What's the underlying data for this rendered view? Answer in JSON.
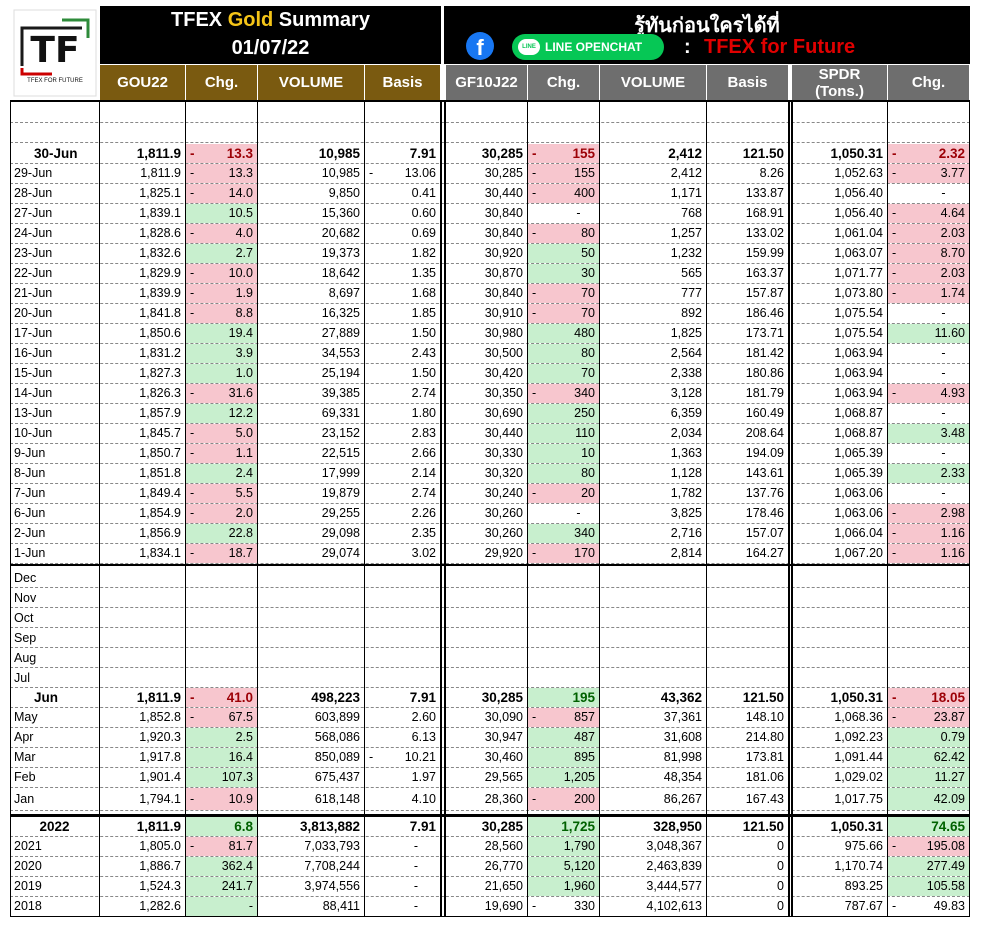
{
  "logo": {
    "letters": "TF",
    "caption": "TFEX FOR FUTURE"
  },
  "header": {
    "title_pre": "TFEX ",
    "title_gold": "Gold",
    "title_post": " Summary",
    "date": "01/07/22",
    "thai_tagline": "รู้ทันก่อนใครได้ที่",
    "line_label": "LINE OPENCHAT",
    "colon": ":",
    "brand": "TFEX for Future"
  },
  "columns": {
    "gold": [
      "GOU22",
      "Chg.",
      "VOLUME",
      "Basis"
    ],
    "gf": [
      "GF10J22",
      "Chg.",
      "VOLUME",
      "Basis"
    ],
    "spdr_l1": "SPDR",
    "spdr_l2": "(Tons.)",
    "spdr_chg": "Chg."
  },
  "daily_rows": [
    {
      "label": "30-Jun",
      "bold": true,
      "gou": "1,811.9",
      "gou_chg": "13.3",
      "gou_sign": "neg",
      "gou_vol": "10,985",
      "gou_basis": "7.91",
      "gou_basis_neg": false,
      "gf": "30,285",
      "gf_chg": "155",
      "gf_sign": "neg",
      "gf_vol": "2,412",
      "gf_basis": "121.50",
      "spdr": "1,050.31",
      "spdr_chg": "2.32",
      "spdr_sign": "neg"
    },
    {
      "label": "29-Jun",
      "gou": "1,811.9",
      "gou_chg": "13.3",
      "gou_sign": "neg",
      "gou_vol": "10,985",
      "gou_basis": "13.06",
      "gou_basis_neg": true,
      "gf": "30,285",
      "gf_chg": "155",
      "gf_sign": "neg",
      "gf_vol": "2,412",
      "gf_basis": "8.26",
      "spdr": "1,052.63",
      "spdr_chg": "3.77",
      "spdr_sign": "neg"
    },
    {
      "label": "28-Jun",
      "gou": "1,825.1",
      "gou_chg": "14.0",
      "gou_sign": "neg",
      "gou_vol": "9,850",
      "gou_basis": "0.41",
      "gf": "30,440",
      "gf_chg": "400",
      "gf_sign": "neg",
      "gf_vol": "1,171",
      "gf_basis": "133.87",
      "spdr": "1,056.40",
      "spdr_chg": "-",
      "spdr_sign": "none"
    },
    {
      "label": "27-Jun",
      "gou": "1,839.1",
      "gou_chg": "10.5",
      "gou_sign": "pos",
      "gou_vol": "15,360",
      "gou_basis": "0.60",
      "gf": "30,840",
      "gf_chg": "-",
      "gf_sign": "none",
      "gf_vol": "768",
      "gf_basis": "168.91",
      "spdr": "1,056.40",
      "spdr_chg": "4.64",
      "spdr_sign": "neg"
    },
    {
      "label": "24-Jun",
      "gou": "1,828.6",
      "gou_chg": "4.0",
      "gou_sign": "neg",
      "gou_vol": "20,682",
      "gou_basis": "0.69",
      "gf": "30,840",
      "gf_chg": "80",
      "gf_sign": "neg",
      "gf_vol": "1,257",
      "gf_basis": "133.02",
      "spdr": "1,061.04",
      "spdr_chg": "2.03",
      "spdr_sign": "neg"
    },
    {
      "label": "23-Jun",
      "gou": "1,832.6",
      "gou_chg": "2.7",
      "gou_sign": "pos",
      "gou_vol": "19,373",
      "gou_basis": "1.82",
      "gf": "30,920",
      "gf_chg": "50",
      "gf_sign": "pos",
      "gf_vol": "1,232",
      "gf_basis": "159.99",
      "spdr": "1,063.07",
      "spdr_chg": "8.70",
      "spdr_sign": "neg"
    },
    {
      "label": "22-Jun",
      "gou": "1,829.9",
      "gou_chg": "10.0",
      "gou_sign": "neg",
      "gou_vol": "18,642",
      "gou_basis": "1.35",
      "gf": "30,870",
      "gf_chg": "30",
      "gf_sign": "pos",
      "gf_vol": "565",
      "gf_basis": "163.37",
      "spdr": "1,071.77",
      "spdr_chg": "2.03",
      "spdr_sign": "neg"
    },
    {
      "label": "21-Jun",
      "gou": "1,839.9",
      "gou_chg": "1.9",
      "gou_sign": "neg",
      "gou_vol": "8,697",
      "gou_basis": "1.68",
      "gf": "30,840",
      "gf_chg": "70",
      "gf_sign": "neg",
      "gf_vol": "777",
      "gf_basis": "157.87",
      "spdr": "1,073.80",
      "spdr_chg": "1.74",
      "spdr_sign": "neg"
    },
    {
      "label": "20-Jun",
      "gou": "1,841.8",
      "gou_chg": "8.8",
      "gou_sign": "neg",
      "gou_vol": "16,325",
      "gou_basis": "1.85",
      "gf": "30,910",
      "gf_chg": "70",
      "gf_sign": "neg",
      "gf_vol": "892",
      "gf_basis": "186.46",
      "spdr": "1,075.54",
      "spdr_chg": "-",
      "spdr_sign": "none"
    },
    {
      "label": "17-Jun",
      "gou": "1,850.6",
      "gou_chg": "19.4",
      "gou_sign": "pos",
      "gou_vol": "27,889",
      "gou_basis": "1.50",
      "gf": "30,980",
      "gf_chg": "480",
      "gf_sign": "pos",
      "gf_vol": "1,825",
      "gf_basis": "173.71",
      "spdr": "1,075.54",
      "spdr_chg": "11.60",
      "spdr_sign": "pos"
    },
    {
      "label": "16-Jun",
      "gou": "1,831.2",
      "gou_chg": "3.9",
      "gou_sign": "pos",
      "gou_vol": "34,553",
      "gou_basis": "2.43",
      "gf": "30,500",
      "gf_chg": "80",
      "gf_sign": "pos",
      "gf_vol": "2,564",
      "gf_basis": "181.42",
      "spdr": "1,063.94",
      "spdr_chg": "-",
      "spdr_sign": "none"
    },
    {
      "label": "15-Jun",
      "gou": "1,827.3",
      "gou_chg": "1.0",
      "gou_sign": "pos",
      "gou_vol": "25,194",
      "gou_basis": "1.50",
      "gf": "30,420",
      "gf_chg": "70",
      "gf_sign": "pos",
      "gf_vol": "2,338",
      "gf_basis": "180.86",
      "spdr": "1,063.94",
      "spdr_chg": "-",
      "spdr_sign": "none"
    },
    {
      "label": "14-Jun",
      "gou": "1,826.3",
      "gou_chg": "31.6",
      "gou_sign": "neg",
      "gou_vol": "39,385",
      "gou_basis": "2.74",
      "gf": "30,350",
      "gf_chg": "340",
      "gf_sign": "neg",
      "gf_vol": "3,128",
      "gf_basis": "181.79",
      "spdr": "1,063.94",
      "spdr_chg": "4.93",
      "spdr_sign": "neg"
    },
    {
      "label": "13-Jun",
      "gou": "1,857.9",
      "gou_chg": "12.2",
      "gou_sign": "pos",
      "gou_vol": "69,331",
      "gou_basis": "1.80",
      "gf": "30,690",
      "gf_chg": "250",
      "gf_sign": "pos",
      "gf_vol": "6,359",
      "gf_basis": "160.49",
      "spdr": "1,068.87",
      "spdr_chg": "-",
      "spdr_sign": "none"
    },
    {
      "label": "10-Jun",
      "gou": "1,845.7",
      "gou_chg": "5.0",
      "gou_sign": "neg",
      "gou_vol": "23,152",
      "gou_basis": "2.83",
      "gf": "30,440",
      "gf_chg": "110",
      "gf_sign": "pos",
      "gf_vol": "2,034",
      "gf_basis": "208.64",
      "spdr": "1,068.87",
      "spdr_chg": "3.48",
      "spdr_sign": "pos"
    },
    {
      "label": "9-Jun",
      "gou": "1,850.7",
      "gou_chg": "1.1",
      "gou_sign": "neg",
      "gou_vol": "22,515",
      "gou_basis": "2.66",
      "gf": "30,330",
      "gf_chg": "10",
      "gf_sign": "pos",
      "gf_vol": "1,363",
      "gf_basis": "194.09",
      "spdr": "1,065.39",
      "spdr_chg": "-",
      "spdr_sign": "none"
    },
    {
      "label": "8-Jun",
      "gou": "1,851.8",
      "gou_chg": "2.4",
      "gou_sign": "pos",
      "gou_vol": "17,999",
      "gou_basis": "2.14",
      "gf": "30,320",
      "gf_chg": "80",
      "gf_sign": "pos",
      "gf_vol": "1,128",
      "gf_basis": "143.61",
      "spdr": "1,065.39",
      "spdr_chg": "2.33",
      "spdr_sign": "pos"
    },
    {
      "label": "7-Jun",
      "gou": "1,849.4",
      "gou_chg": "5.5",
      "gou_sign": "neg",
      "gou_vol": "19,879",
      "gou_basis": "2.74",
      "gf": "30,240",
      "gf_chg": "20",
      "gf_sign": "neg",
      "gf_vol": "1,782",
      "gf_basis": "137.76",
      "spdr": "1,063.06",
      "spdr_chg": "-",
      "spdr_sign": "none"
    },
    {
      "label": "6-Jun",
      "gou": "1,854.9",
      "gou_chg": "2.0",
      "gou_sign": "neg",
      "gou_vol": "29,255",
      "gou_basis": "2.26",
      "gf": "30,260",
      "gf_chg": "-",
      "gf_sign": "none",
      "gf_vol": "3,825",
      "gf_basis": "178.46",
      "spdr": "1,063.06",
      "spdr_chg": "2.98",
      "spdr_sign": "neg"
    },
    {
      "label": "2-Jun",
      "gou": "1,856.9",
      "gou_chg": "22.8",
      "gou_sign": "pos",
      "gou_vol": "29,098",
      "gou_basis": "2.35",
      "gf": "30,260",
      "gf_chg": "340",
      "gf_sign": "pos",
      "gf_vol": "2,716",
      "gf_basis": "157.07",
      "spdr": "1,066.04",
      "spdr_chg": "1.16",
      "spdr_sign": "neg"
    },
    {
      "label": "1-Jun",
      "gou": "1,834.1",
      "gou_chg": "18.7",
      "gou_sign": "neg",
      "gou_vol": "29,074",
      "gou_basis": "3.02",
      "gf": "29,920",
      "gf_chg": "170",
      "gf_sign": "neg",
      "gf_vol": "2,814",
      "gf_basis": "164.27",
      "spdr": "1,067.20",
      "spdr_chg": "1.16",
      "spdr_sign": "neg"
    }
  ],
  "empty_months": [
    "Dec",
    "Nov",
    "Oct",
    "Sep",
    "Aug",
    "Jul"
  ],
  "monthly_rows": [
    {
      "label": "Jun",
      "bold": true,
      "gou": "1,811.9",
      "gou_chg": "41.0",
      "gou_sign": "neg",
      "gou_vol": "498,223",
      "gou_basis": "7.91",
      "gf": "30,285",
      "gf_chg": "195",
      "gf_sign": "pos",
      "gf_vol": "43,362",
      "gf_basis": "121.50",
      "spdr": "1,050.31",
      "spdr_chg": "18.05",
      "spdr_sign": "neg"
    },
    {
      "label": "May",
      "gou": "1,852.8",
      "gou_chg": "67.5",
      "gou_sign": "neg",
      "gou_vol": "603,899",
      "gou_basis": "2.60",
      "gf": "30,090",
      "gf_chg": "857",
      "gf_sign": "neg",
      "gf_vol": "37,361",
      "gf_basis": "148.10",
      "spdr": "1,068.36",
      "spdr_chg": "23.87",
      "spdr_sign": "neg"
    },
    {
      "label": "Apr",
      "gou": "1,920.3",
      "gou_chg": "2.5",
      "gou_sign": "pos",
      "gou_vol": "568,086",
      "gou_basis": "6.13",
      "gf": "30,947",
      "gf_chg": "487",
      "gf_sign": "pos",
      "gf_vol": "31,608",
      "gf_basis": "214.80",
      "spdr": "1,092.23",
      "spdr_chg": "0.79",
      "spdr_sign": "pos"
    },
    {
      "label": "Mar",
      "gou": "1,917.8",
      "gou_chg": "16.4",
      "gou_sign": "pos",
      "gou_vol": "850,089",
      "gou_basis": "10.21",
      "gou_basis_neg": true,
      "gf": "30,460",
      "gf_chg": "895",
      "gf_sign": "pos",
      "gf_vol": "81,998",
      "gf_basis": "173.81",
      "spdr": "1,091.44",
      "spdr_chg": "62.42",
      "spdr_sign": "pos"
    },
    {
      "label": "Feb",
      "gou": "1,901.4",
      "gou_chg": "107.3",
      "gou_sign": "pos",
      "gou_vol": "675,437",
      "gou_basis": "1.97",
      "gf": "29,565",
      "gf_chg": "1,205",
      "gf_sign": "pos",
      "gf_vol": "48,354",
      "gf_basis": "181.06",
      "spdr": "1,029.02",
      "spdr_chg": "11.27",
      "spdr_sign": "pos"
    },
    {
      "label": "Jan",
      "gou": "1,794.1",
      "gou_chg": "10.9",
      "gou_sign": "neg",
      "gou_vol": "618,148",
      "gou_basis": "4.10",
      "gf": "28,360",
      "gf_chg": "200",
      "gf_sign": "neg",
      "gf_vol": "86,267",
      "gf_basis": "167.43",
      "spdr": "1,017.75",
      "spdr_chg": "42.09",
      "spdr_sign": "pos"
    }
  ],
  "yearly_rows": [
    {
      "label": "2022",
      "bold": true,
      "center": true,
      "gou": "1,811.9",
      "gou_chg": "6.8",
      "gou_sign": "pos",
      "gou_vol": "3,813,882",
      "gou_basis": "7.91",
      "gf": "30,285",
      "gf_chg": "1,725",
      "gf_sign": "pos",
      "gf_vol": "328,950",
      "gf_basis": "121.50",
      "spdr": "1,050.31",
      "spdr_chg": "74.65",
      "spdr_sign": "pos"
    },
    {
      "label": "2021",
      "gou": "1,805.0",
      "gou_chg": "81.7",
      "gou_sign": "neg",
      "gou_vol": "7,033,793",
      "gou_basis": "-",
      "gf": "28,560",
      "gf_chg": "1,790",
      "gf_sign": "pos",
      "gf_vol": "3,048,367",
      "gf_basis": "0",
      "spdr": "975.66",
      "spdr_chg": "195.08",
      "spdr_sign": "neg"
    },
    {
      "label": "2020",
      "gou": "1,886.7",
      "gou_chg": "362.4",
      "gou_sign": "pos",
      "gou_vol": "7,708,244",
      "gou_basis": "-",
      "gf": "26,770",
      "gf_chg": "5,120",
      "gf_sign": "pos",
      "gf_vol": "2,463,839",
      "gf_basis": "0",
      "spdr": "1,170.74",
      "spdr_chg": "277.49",
      "spdr_sign": "pos"
    },
    {
      "label": "2019",
      "gou": "1,524.3",
      "gou_chg": "241.7",
      "gou_sign": "pos",
      "gou_vol": "3,974,556",
      "gou_basis": "-",
      "gf": "21,650",
      "gf_chg": "1,960",
      "gf_sign": "pos",
      "gf_vol": "3,444,577",
      "gf_basis": "0",
      "spdr": "893.25",
      "spdr_chg": "105.58",
      "spdr_sign": "pos"
    },
    {
      "label": "2018",
      "gou": "1,282.6",
      "gou_chg": "-",
      "gou_sign": "pos",
      "gou_vol": "88,411",
      "gou_basis": "-",
      "gf": "19,690",
      "gf_chg": "330",
      "gf_sign": "plainneg",
      "gf_vol": "4,102,613",
      "gf_basis": "0",
      "spdr": "787.67",
      "spdr_chg": "49.83",
      "spdr_sign": "plainneg"
    }
  ]
}
